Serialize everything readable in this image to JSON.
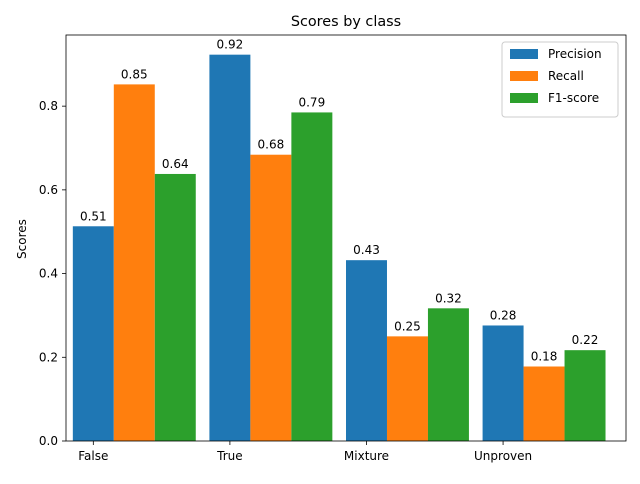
{
  "chart_data": {
    "type": "bar",
    "title": "Scores by class",
    "xlabel": "",
    "ylabel": "Scores",
    "categories": [
      "False",
      "True",
      "Mixture",
      "Unproven"
    ],
    "series": [
      {
        "name": "Precision",
        "color": "#1f77b4",
        "values": [
          0.513,
          0.923,
          0.432,
          0.276
        ],
        "labels": [
          "0.51",
          "0.92",
          "0.43",
          "0.28"
        ]
      },
      {
        "name": "Recall",
        "color": "#ff7f0e",
        "values": [
          0.852,
          0.684,
          0.25,
          0.178
        ],
        "labels": [
          "0.85",
          "0.68",
          "0.25",
          "0.18"
        ]
      },
      {
        "name": "F1-score",
        "color": "#2ca02c",
        "values": [
          0.638,
          0.785,
          0.317,
          0.217
        ],
        "labels": [
          "0.64",
          "0.79",
          "0.32",
          "0.22"
        ]
      }
    ],
    "ylim": [
      0,
      0.97
    ],
    "yticks": [
      0.0,
      0.2,
      0.4,
      0.6,
      0.8
    ],
    "ytick_labels": [
      "0.0",
      "0.2",
      "0.4",
      "0.6",
      "0.8"
    ],
    "grid": false,
    "legend_position": "top-right"
  }
}
